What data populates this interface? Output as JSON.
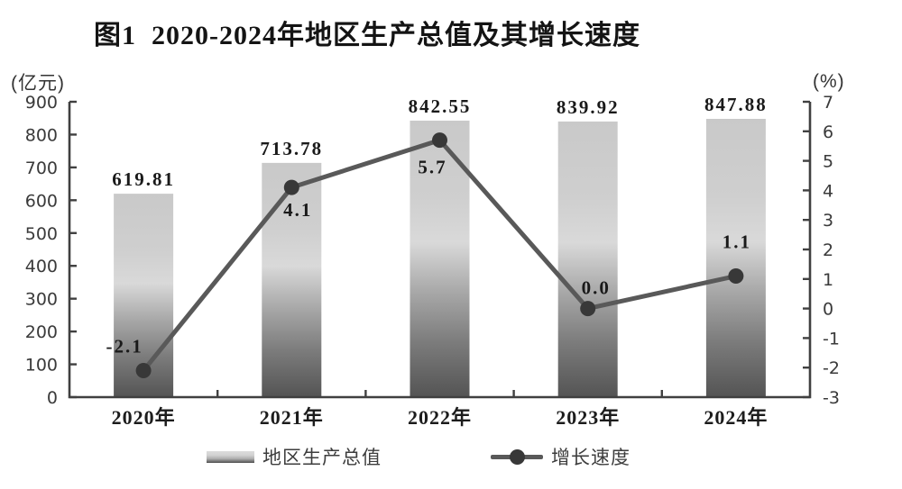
{
  "title": "图1  2020-2024年地区生产总值及其增长速度",
  "left_axis_unit": "(亿元)",
  "right_axis_unit": "(%)",
  "legend": {
    "bar_label": "地区生产总值",
    "line_label": "增长速度"
  },
  "colors": {
    "axis": "#404040",
    "bar_gradient_top": "#c9c9c9",
    "bar_gradient_light": "#d9d9d9",
    "bar_gradient_bottom": "#545454",
    "line": "#595959",
    "marker": "#383838",
    "label_text": "#1a1a1a"
  },
  "chart_data": {
    "type": "bar",
    "subtype": "bar+line combo",
    "title": "图1  2020-2024年地区生产总值及其增长速度",
    "categories": [
      "2020年",
      "2021年",
      "2022年",
      "2023年",
      "2024年"
    ],
    "series": [
      {
        "name": "地区生产总值",
        "type": "bar",
        "axis": "left",
        "values": [
          619.81,
          713.78,
          842.55,
          839.92,
          847.88
        ],
        "labels": [
          "619.81",
          "713.78",
          "842.55",
          "839.92",
          "847.88"
        ]
      },
      {
        "name": "增长速度",
        "type": "line",
        "axis": "right",
        "values": [
          -2.1,
          4.1,
          5.7,
          0.0,
          1.1
        ],
        "labels": [
          "-2.1",
          "4.1",
          "5.7",
          "0.0",
          "1.1"
        ]
      }
    ],
    "left_axis": {
      "label": "(亿元)",
      "min": 0,
      "max": 900,
      "step": 100
    },
    "right_axis": {
      "label": "(%)",
      "min": -3,
      "max": 7,
      "step": 1
    },
    "grid": false,
    "legend_position": "bottom"
  }
}
